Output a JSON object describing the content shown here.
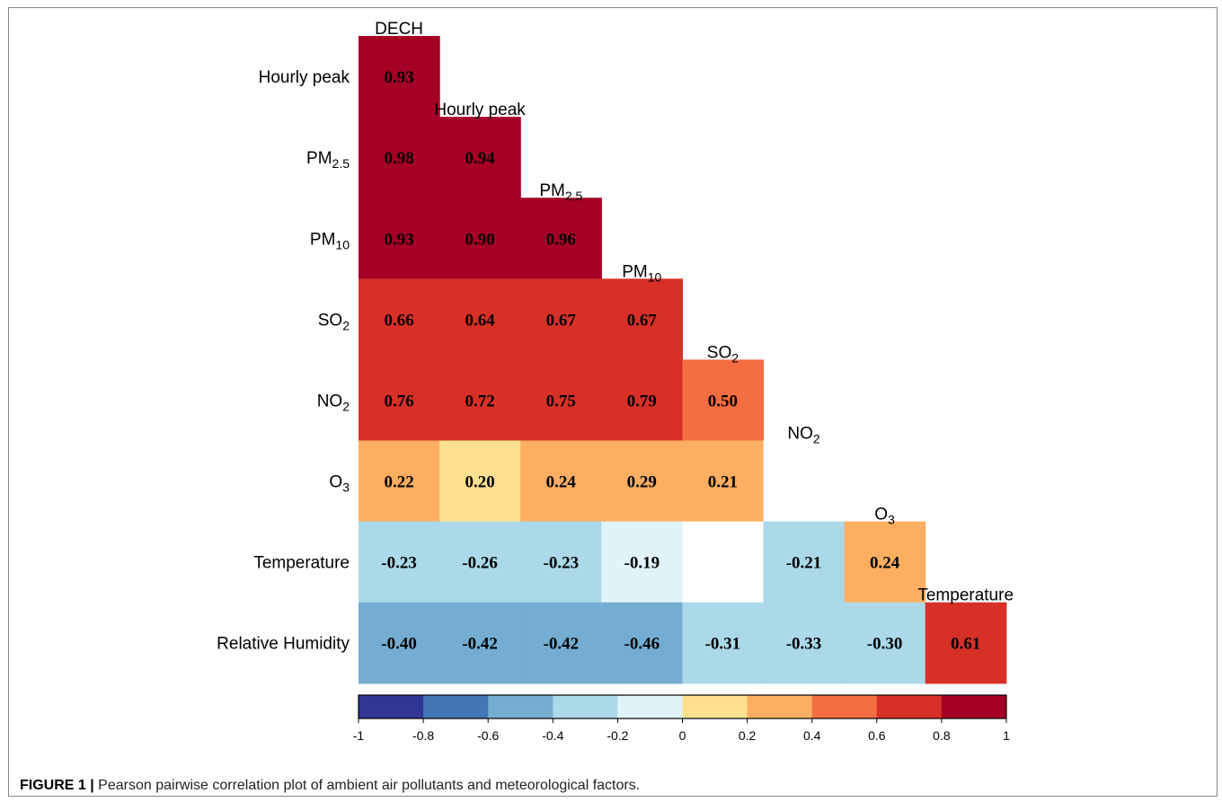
{
  "caption": {
    "label": "FIGURE 1 |",
    "text": "Pearson pairwise correlation plot of ambient air pollutants and meteorological factors."
  },
  "chart_data": {
    "type": "heatmap",
    "subtype": "lower-triangular correlation matrix",
    "variables": [
      "DECH",
      "Hourly peak",
      "PM2.5",
      "PM10",
      "SO2",
      "NO2",
      "O3",
      "Temperature",
      "Relative Humidity"
    ],
    "variable_labels": [
      {
        "base": "DECH",
        "sub": ""
      },
      {
        "base": "Hourly peak",
        "sub": ""
      },
      {
        "base": "PM",
        "sub": "2.5"
      },
      {
        "base": "PM",
        "sub": "10"
      },
      {
        "base": "SO",
        "sub": "2"
      },
      {
        "base": "NO",
        "sub": "2"
      },
      {
        "base": "O",
        "sub": "3"
      },
      {
        "base": "Temperature",
        "sub": ""
      },
      {
        "base": "Relative Humidity",
        "sub": ""
      }
    ],
    "row_variables": [
      "Hourly peak",
      "PM2.5",
      "PM10",
      "SO2",
      "NO2",
      "O3",
      "Temperature",
      "Relative Humidity"
    ],
    "column_variables": [
      "DECH",
      "Hourly peak",
      "PM2.5",
      "PM10",
      "SO2",
      "NO2",
      "O3",
      "Temperature"
    ],
    "matrix": [
      [
        0.93
      ],
      [
        0.98,
        0.94
      ],
      [
        0.93,
        0.9,
        0.96
      ],
      [
        0.66,
        0.64,
        0.67,
        0.67
      ],
      [
        0.76,
        0.72,
        0.75,
        0.79,
        0.5
      ],
      [
        0.22,
        0.2,
        0.24,
        0.29,
        0.21,
        null
      ],
      [
        -0.23,
        -0.26,
        -0.23,
        -0.19,
        null,
        -0.21,
        0.24
      ],
      [
        -0.4,
        -0.42,
        -0.42,
        -0.46,
        -0.31,
        -0.33,
        -0.3,
        0.61
      ]
    ],
    "value_labels": [
      [
        "0.93"
      ],
      [
        "0.98",
        "0.94"
      ],
      [
        "0.93",
        "0.90",
        "0.96"
      ],
      [
        "0.66",
        "0.64",
        "0.67",
        "0.67"
      ],
      [
        "0.76",
        "0.72",
        "0.75",
        "0.79",
        "0.50"
      ],
      [
        "0.22",
        "0.20",
        "0.24",
        "0.29",
        "0.21",
        ""
      ],
      [
        "-0.23",
        "-0.26",
        "-0.23",
        "-0.19",
        "",
        "-0.21",
        "0.24"
      ],
      [
        "-0.40",
        "-0.42",
        "-0.42",
        "-0.46",
        "-0.31",
        "-0.33",
        "-0.30",
        "0.61"
      ]
    ],
    "colorbar": {
      "range": [
        -1,
        1
      ],
      "breaks": [
        -1,
        -0.8,
        -0.6,
        -0.4,
        -0.2,
        0,
        0.2,
        0.4,
        0.6,
        0.8,
        1
      ],
      "tick_labels": [
        "-1",
        "-0.8",
        "-0.6",
        "-0.4",
        "-0.2",
        "0",
        "0.2",
        "0.4",
        "0.6",
        "0.8",
        "1"
      ],
      "colors": [
        "#313695",
        "#4575b4",
        "#74add1",
        "#abd9e9",
        "#e0f3f8",
        "#fee090",
        "#fdae61",
        "#f46d43",
        "#d73027",
        "#a50026"
      ],
      "placement": "bottom"
    }
  }
}
